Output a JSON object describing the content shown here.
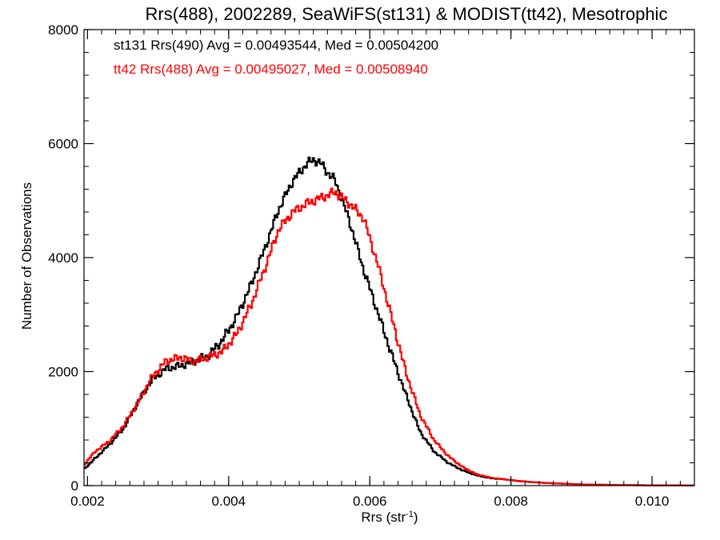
{
  "chart_data": {
    "type": "line",
    "step": true,
    "title": "Rrs(488), 2002289, SeaWiFS(st131) & MODIST(tt42), Mesotrophic",
    "xlabel": "Rrs (str",
    "xlabel_sup": "-1",
    "xlabel_close": ")",
    "ylabel": "Number of Observations",
    "xlim": [
      0.00195,
      0.0106
    ],
    "ylim": [
      0,
      8000
    ],
    "xticks": [
      0.002,
      0.004,
      0.006,
      0.008,
      0.01
    ],
    "xtick_labels": [
      "0.002",
      "0.004",
      "0.006",
      "0.008",
      "0.010"
    ],
    "yticks": [
      0,
      2000,
      4000,
      6000,
      8000
    ],
    "ytick_labels": [
      "0",
      "2000",
      "4000",
      "6000",
      "8000"
    ],
    "grid": false,
    "legend_position": "top-left",
    "series": [
      {
        "name": "st131 Rrs(490) Avg = 0.00493544, Med = 0.00504200",
        "color": "#000000",
        "points": [
          [
            0.00195,
            300
          ],
          [
            0.0021,
            480
          ],
          [
            0.0023,
            720
          ],
          [
            0.0025,
            1000
          ],
          [
            0.0027,
            1450
          ],
          [
            0.0029,
            1850
          ],
          [
            0.0031,
            2050
          ],
          [
            0.0033,
            2100
          ],
          [
            0.0035,
            2180
          ],
          [
            0.0037,
            2280
          ],
          [
            0.0039,
            2550
          ],
          [
            0.0041,
            2950
          ],
          [
            0.0043,
            3500
          ],
          [
            0.0045,
            4150
          ],
          [
            0.0047,
            4850
          ],
          [
            0.0049,
            5350
          ],
          [
            0.0051,
            5650
          ],
          [
            0.0052,
            5720
          ],
          [
            0.0053,
            5650
          ],
          [
            0.0054,
            5480
          ],
          [
            0.0055,
            5350
          ],
          [
            0.0057,
            4650
          ],
          [
            0.0059,
            3800
          ],
          [
            0.0061,
            3050
          ],
          [
            0.0063,
            2300
          ],
          [
            0.0065,
            1600
          ],
          [
            0.0067,
            950
          ],
          [
            0.0069,
            600
          ],
          [
            0.0071,
            400
          ],
          [
            0.0073,
            270
          ],
          [
            0.0075,
            180
          ],
          [
            0.0077,
            130
          ],
          [
            0.0079,
            110
          ],
          [
            0.0081,
            80
          ],
          [
            0.0083,
            60
          ],
          [
            0.0085,
            45
          ],
          [
            0.0087,
            35
          ],
          [
            0.009,
            20
          ],
          [
            0.0095,
            10
          ],
          [
            0.01,
            5
          ],
          [
            0.0106,
            3
          ]
        ]
      },
      {
        "name": "tt42 Rrs(488) Avg = 0.00495027, Med = 0.00508940",
        "color": "#ff0000",
        "points": [
          [
            0.00195,
            380
          ],
          [
            0.0021,
            600
          ],
          [
            0.0023,
            780
          ],
          [
            0.0025,
            1050
          ],
          [
            0.0027,
            1450
          ],
          [
            0.0029,
            1900
          ],
          [
            0.0031,
            2180
          ],
          [
            0.0033,
            2250
          ],
          [
            0.0035,
            2180
          ],
          [
            0.0037,
            2250
          ],
          [
            0.0039,
            2350
          ],
          [
            0.0041,
            2650
          ],
          [
            0.0043,
            3150
          ],
          [
            0.0045,
            3800
          ],
          [
            0.0047,
            4500
          ],
          [
            0.0049,
            4800
          ],
          [
            0.0051,
            4950
          ],
          [
            0.0053,
            5050
          ],
          [
            0.0055,
            5150
          ],
          [
            0.0057,
            4950
          ],
          [
            0.0059,
            4700
          ],
          [
            0.0061,
            3900
          ],
          [
            0.0063,
            2950
          ],
          [
            0.0065,
            2000
          ],
          [
            0.0067,
            1250
          ],
          [
            0.0069,
            800
          ],
          [
            0.0071,
            520
          ],
          [
            0.0073,
            330
          ],
          [
            0.0075,
            200
          ],
          [
            0.0077,
            140
          ],
          [
            0.0079,
            110
          ],
          [
            0.0081,
            80
          ],
          [
            0.0083,
            60
          ],
          [
            0.0085,
            45
          ],
          [
            0.0087,
            35
          ],
          [
            0.009,
            20
          ],
          [
            0.0095,
            10
          ],
          [
            0.01,
            5
          ],
          [
            0.0106,
            3
          ]
        ]
      }
    ]
  }
}
